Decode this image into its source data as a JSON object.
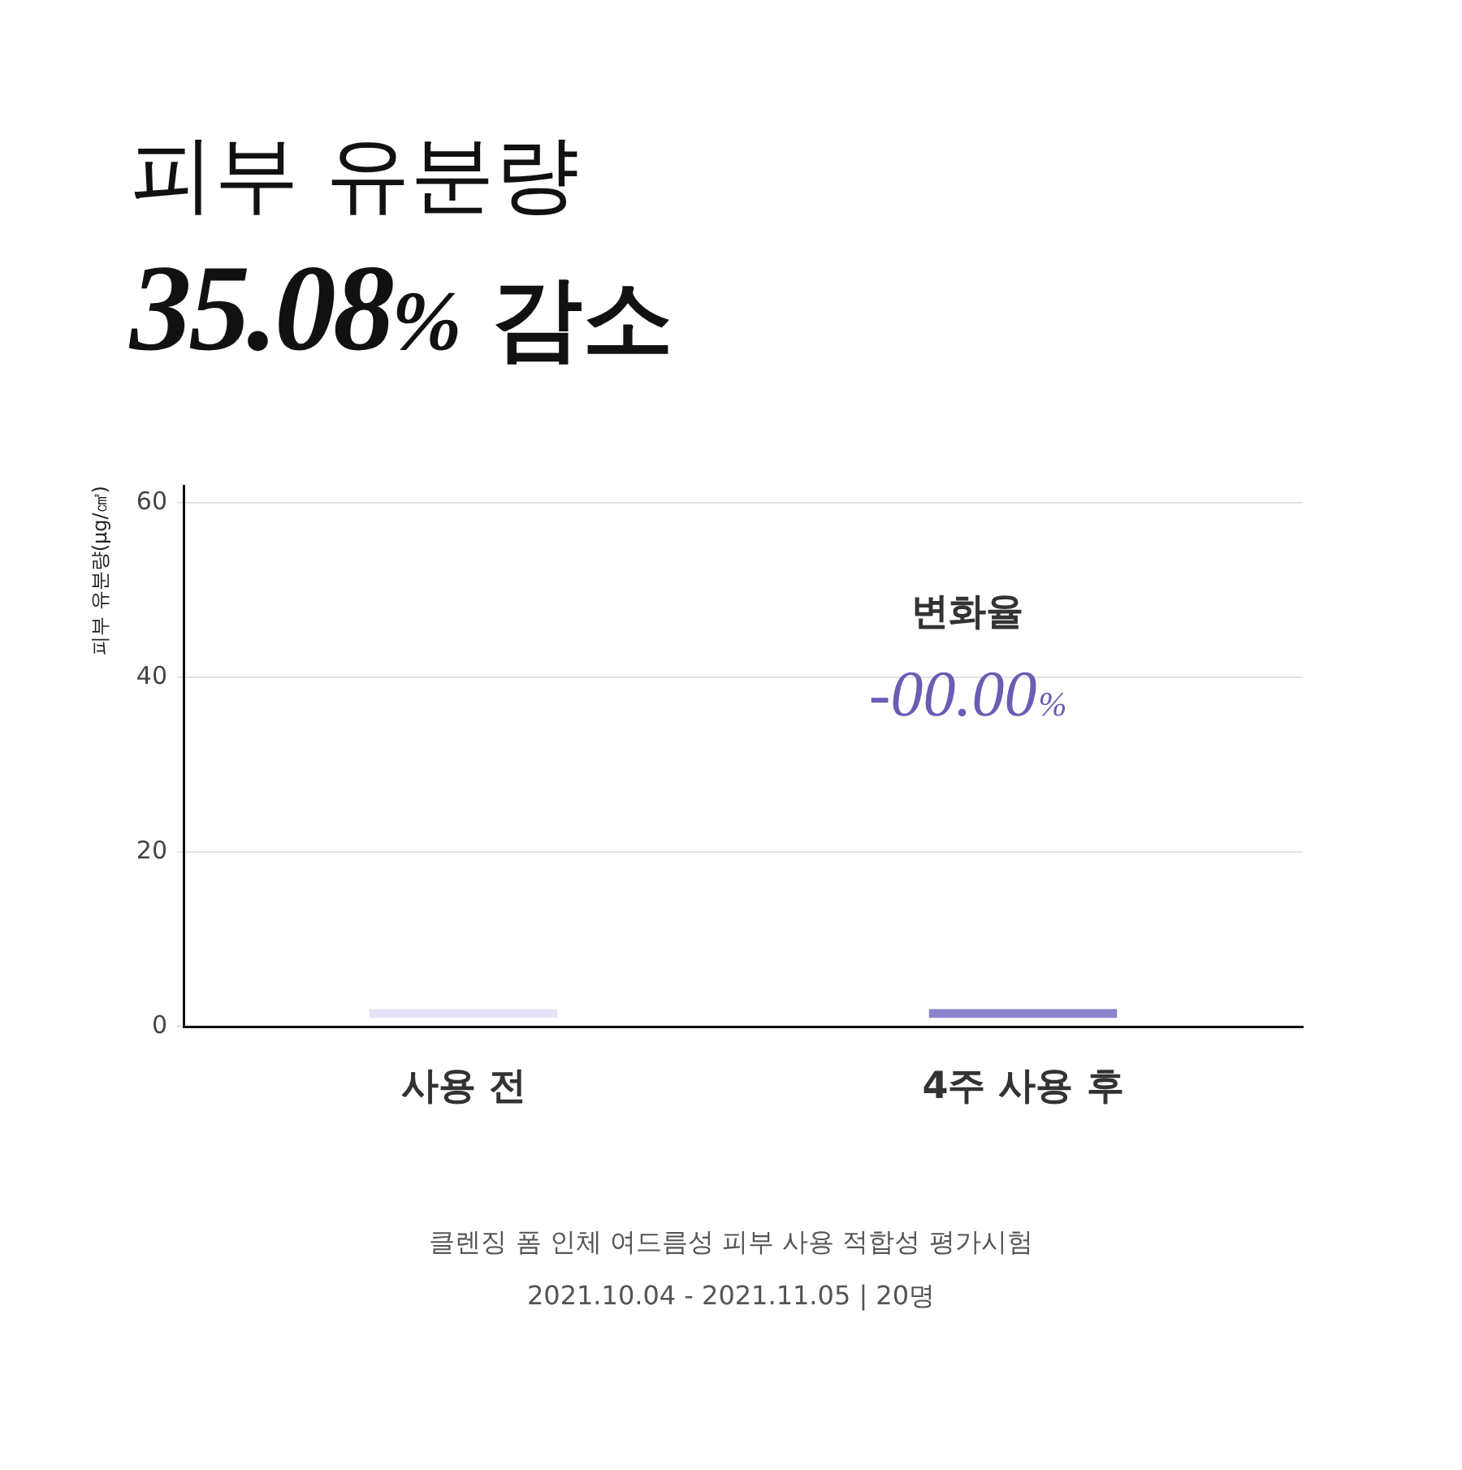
{
  "chart_data": {
    "type": "bar",
    "title": "피부 유분량",
    "subtitle": "35.08% 감소",
    "ylabel": "피부 유분량(μg/㎠)",
    "categories": [
      "사용 전",
      "4주 사용 후"
    ],
    "values": [
      1,
      1
    ],
    "base": [
      1,
      1
    ],
    "colors": [
      "#e6e3f7",
      "#8a84ca"
    ],
    "ylim": [
      0,
      62
    ],
    "yticks": [
      0,
      20,
      40,
      60
    ],
    "grid": "y",
    "annotations": [
      "변화율",
      "-00.00%",
      "클렌징 폼 인체 여드름성 피부 사용 적합성 평가시험",
      "2021.10.04 - 2021.11.05 | 20명"
    ]
  }
}
